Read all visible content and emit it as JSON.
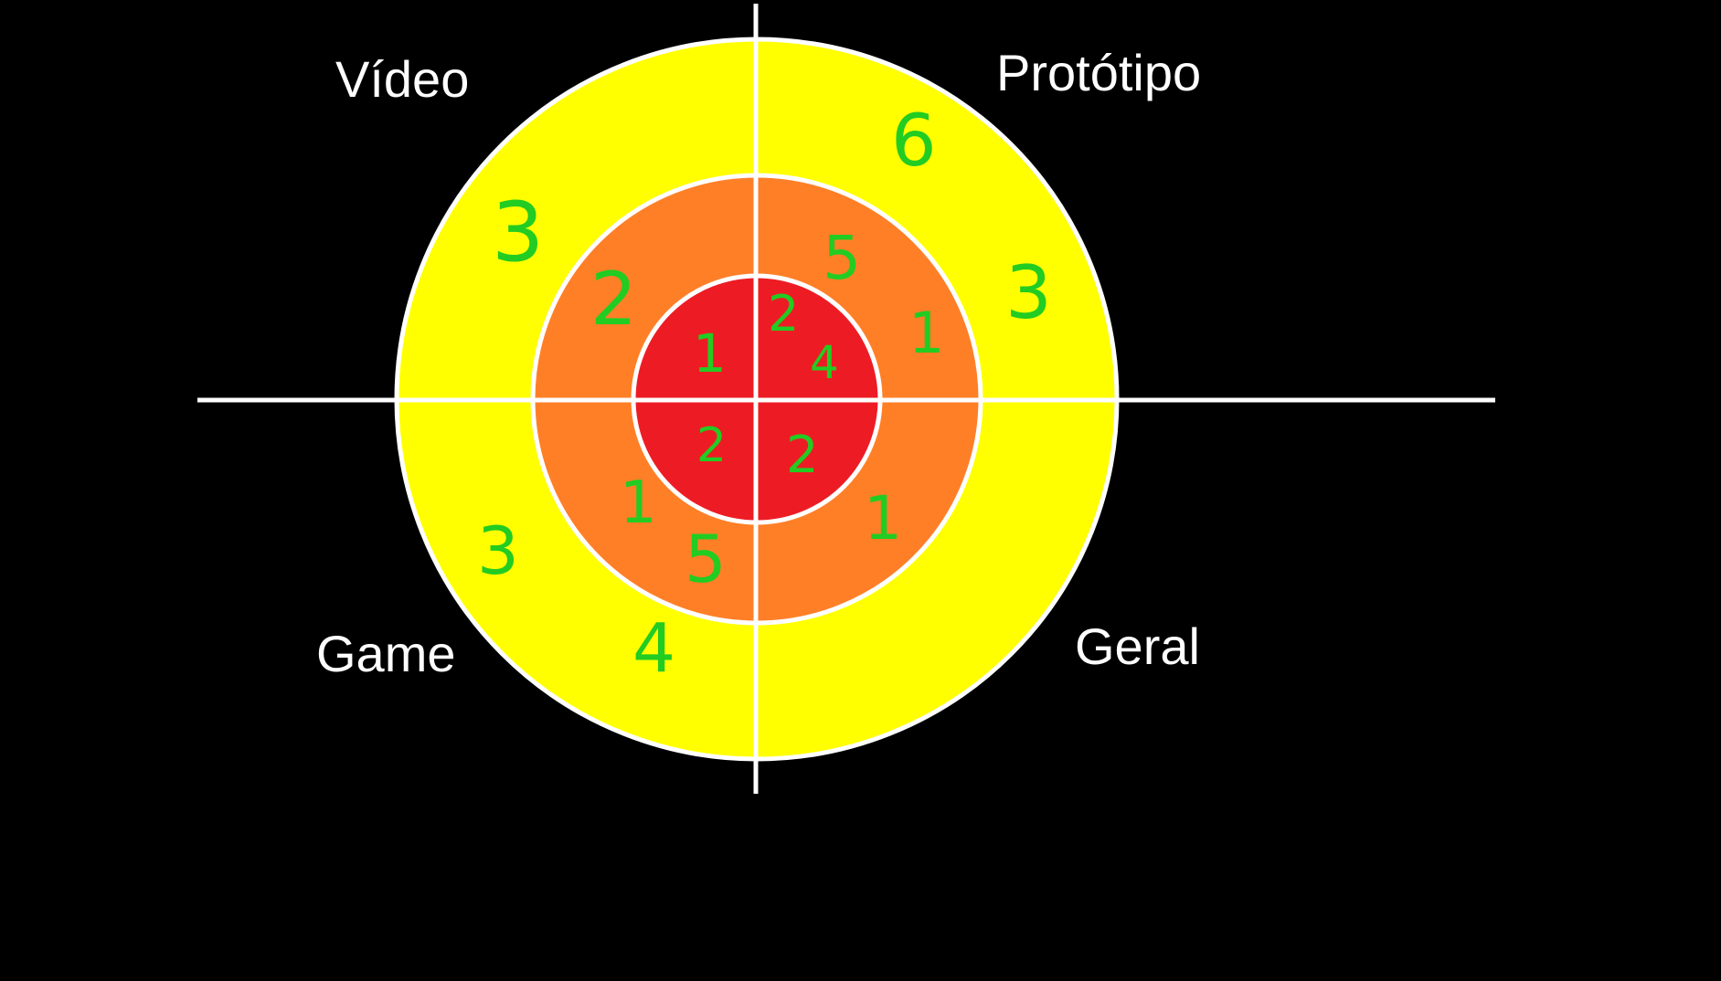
{
  "colors": {
    "background": "#000000",
    "outer_ring": "#ffff00",
    "middle_ring": "#ff7f27",
    "inner_ring": "#ed1c24",
    "lines": "#ffffff",
    "scores": "#22cc22",
    "labels": "#ffffff"
  },
  "quadrants": {
    "top_left": "Vídeo",
    "top_right": "Protótipo",
    "bottom_left": "Game",
    "bottom_right": "Geral"
  },
  "scores": {
    "top_left": {
      "outer": [
        "3"
      ],
      "middle": [
        "2"
      ],
      "inner": [
        "1"
      ]
    },
    "top_right": {
      "outer": [
        "6",
        "3"
      ],
      "middle": [
        "5",
        "1"
      ],
      "inner": [
        "2",
        "4"
      ]
    },
    "bottom_left": {
      "outer": [
        "3",
        "4"
      ],
      "middle": [
        "1",
        "5"
      ],
      "inner": [
        "2"
      ]
    },
    "bottom_right": {
      "outer": [],
      "middle": [
        "1"
      ],
      "inner": [
        "2"
      ]
    }
  }
}
